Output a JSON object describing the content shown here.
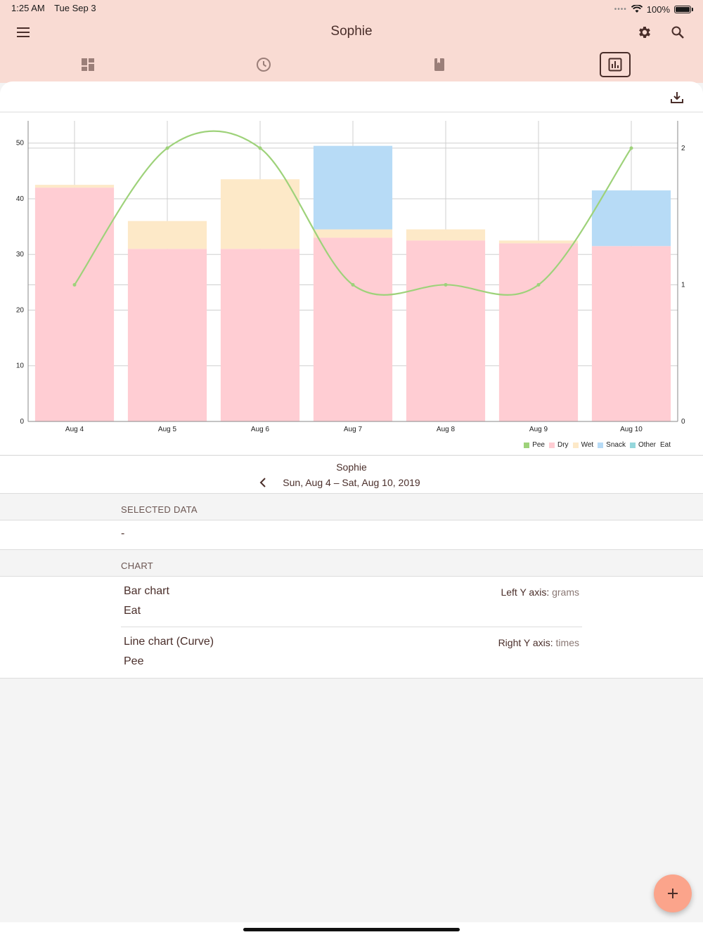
{
  "status_bar": {
    "time": "1:25 AM",
    "date": "Tue Sep 3",
    "battery": "100%"
  },
  "header": {
    "title": "Sophie"
  },
  "tabs": [
    {
      "name": "dashboard",
      "icon": "dashboard-icon"
    },
    {
      "name": "history",
      "icon": "clock-icon"
    },
    {
      "name": "journal",
      "icon": "book-icon"
    },
    {
      "name": "charts",
      "icon": "bar-chart-icon",
      "active": true
    }
  ],
  "colors": {
    "header_bg": "#f9dbd3",
    "pee": "#9ed27a",
    "dry": "#ffcdd3",
    "wet": "#fde9c8",
    "snack": "#b7dbf6",
    "other": "#95d7dc",
    "fab": "#fba48b"
  },
  "chart_data": {
    "type": "bar",
    "stacked": true,
    "categories": [
      "Aug 4",
      "Aug 5",
      "Aug 6",
      "Aug 7",
      "Aug 8",
      "Aug 9",
      "Aug 10"
    ],
    "series": [
      {
        "name": "Dry",
        "values": [
          42,
          31,
          31,
          33,
          32.5,
          32,
          31.5
        ]
      },
      {
        "name": "Wet",
        "values": [
          0.5,
          5,
          12.5,
          1.5,
          2,
          0.5,
          0
        ]
      },
      {
        "name": "Snack",
        "values": [
          0,
          0,
          0,
          15,
          0,
          0,
          10
        ]
      },
      {
        "name": "Other",
        "values": [
          0,
          0,
          0,
          0,
          0,
          0,
          0
        ]
      }
    ],
    "line_series": {
      "name": "Pee",
      "values": [
        1,
        2,
        2,
        1,
        1,
        1,
        2
      ],
      "axis": "right"
    },
    "ylim": [
      0,
      54
    ],
    "yticks": [
      0,
      10,
      20,
      30,
      40,
      50
    ],
    "y2lim": [
      0,
      2.2
    ],
    "y2ticks": [
      0,
      1,
      2
    ],
    "legend_items": [
      "Pee",
      "Dry",
      "Wet",
      "Snack",
      "Other"
    ],
    "legend_title": "Eat",
    "legend_position": "bottom-right",
    "grid": true
  },
  "range": {
    "name": "Sophie",
    "text": "Sun, Aug 4 – Sat, Aug 10, 2019"
  },
  "selected": {
    "header": "SELECTED DATA",
    "value": "-"
  },
  "chart_section": {
    "header": "CHART",
    "rows": [
      {
        "kind": "Bar chart",
        "metric": "Eat",
        "axis_label": "Left Y axis:",
        "axis_value": "grams"
      },
      {
        "kind": "Line chart (Curve)",
        "metric": "Pee",
        "axis_label": "Right Y axis:",
        "axis_value": "times"
      }
    ]
  }
}
